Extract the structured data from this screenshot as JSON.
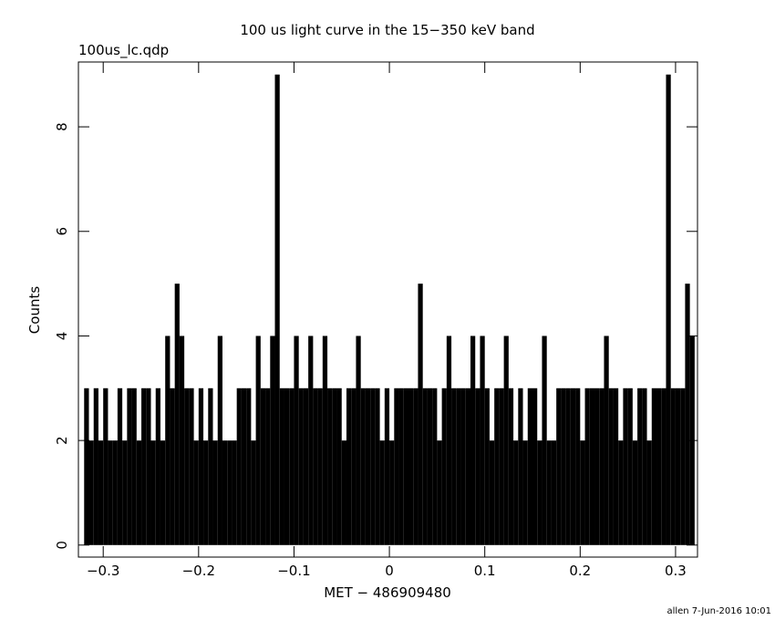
{
  "chart_data": {
    "type": "histogram",
    "title": "100 us light curve in the 15−350 keV band",
    "subtitle": "100us_lc.qdp",
    "x_label": "MET − 486909480",
    "y_label": "Counts",
    "footer": "allen  7-Jun-2016 10:01",
    "color": "#000000",
    "bins": [
      -0.32,
      -0.315,
      -0.31,
      -0.305,
      -0.3,
      -0.295,
      -0.29,
      -0.285,
      -0.28,
      -0.275,
      -0.27,
      -0.265,
      -0.26,
      -0.255,
      -0.25,
      -0.245,
      -0.24,
      -0.235,
      -0.23,
      -0.225,
      -0.22,
      -0.215,
      -0.21,
      -0.205,
      -0.2,
      -0.195,
      -0.19,
      -0.185,
      -0.18,
      -0.175,
      -0.17,
      -0.165,
      -0.16,
      -0.155,
      -0.15,
      -0.145,
      -0.14,
      -0.135,
      -0.13,
      -0.125,
      -0.12,
      -0.115,
      -0.11,
      -0.105,
      -0.1,
      -0.095,
      -0.09,
      -0.085,
      -0.08,
      -0.075,
      -0.07,
      -0.065,
      -0.06,
      -0.055,
      -0.05,
      -0.045,
      -0.04,
      -0.035,
      -0.03,
      -0.025,
      -0.02,
      -0.015,
      -0.01,
      -0.005,
      0,
      0.005,
      0.01,
      0.015,
      0.02,
      0.025,
      0.03,
      0.035,
      0.04,
      0.045,
      0.05,
      0.055,
      0.06,
      0.065,
      0.07,
      0.075,
      0.08,
      0.085,
      0.09,
      0.095,
      0.1,
      0.105,
      0.11,
      0.115,
      0.12,
      0.125,
      0.13,
      0.135,
      0.14,
      0.145,
      0.15,
      0.155,
      0.16,
      0.165,
      0.17,
      0.175,
      0.18,
      0.185,
      0.19,
      0.195,
      0.2,
      0.205,
      0.21,
      0.215,
      0.22,
      0.225,
      0.23,
      0.235,
      0.24,
      0.245,
      0.25,
      0.255,
      0.26,
      0.265,
      0.27,
      0.275,
      0.28,
      0.285,
      0.29,
      0.295,
      0.3,
      0.305,
      0.31,
      0.315,
      0.32
    ],
    "values": [
      3,
      2,
      3,
      2,
      3,
      2,
      2,
      3,
      2,
      3,
      3,
      2,
      3,
      3,
      2,
      3,
      2,
      4,
      3,
      5,
      4,
      3,
      3,
      2,
      3,
      2,
      3,
      2,
      4,
      2,
      2,
      2,
      3,
      3,
      3,
      2,
      4,
      3,
      3,
      4,
      9,
      3,
      3,
      3,
      4,
      3,
      3,
      4,
      3,
      3,
      4,
      3,
      3,
      3,
      2,
      3,
      3,
      4,
      3,
      3,
      3,
      3,
      2,
      3,
      2,
      3,
      3,
      3,
      3,
      3,
      5,
      3,
      3,
      3,
      2,
      3,
      4,
      3,
      3,
      3,
      3,
      4,
      3,
      4,
      3,
      2,
      3,
      3,
      4,
      3,
      2,
      3,
      2,
      3,
      3,
      2,
      4,
      2,
      2,
      3,
      3,
      3,
      3,
      3,
      2,
      3,
      3,
      3,
      3,
      4,
      3,
      3,
      2,
      3,
      3,
      2,
      3,
      3,
      2,
      3,
      3,
      3,
      9,
      3,
      3,
      3,
      5,
      4
    ],
    "xlim": [
      -0.326,
      0.323
    ],
    "ylim": [
      -0.23,
      9.24
    ],
    "xticks": [
      {
        "value": -0.3,
        "label": "−0.3"
      },
      {
        "value": -0.2,
        "label": "−0.2"
      },
      {
        "value": -0.1,
        "label": "−0.1"
      },
      0,
      0.1,
      0.2,
      0.3
    ],
    "yticks": [
      0,
      2,
      4,
      6,
      8
    ]
  }
}
